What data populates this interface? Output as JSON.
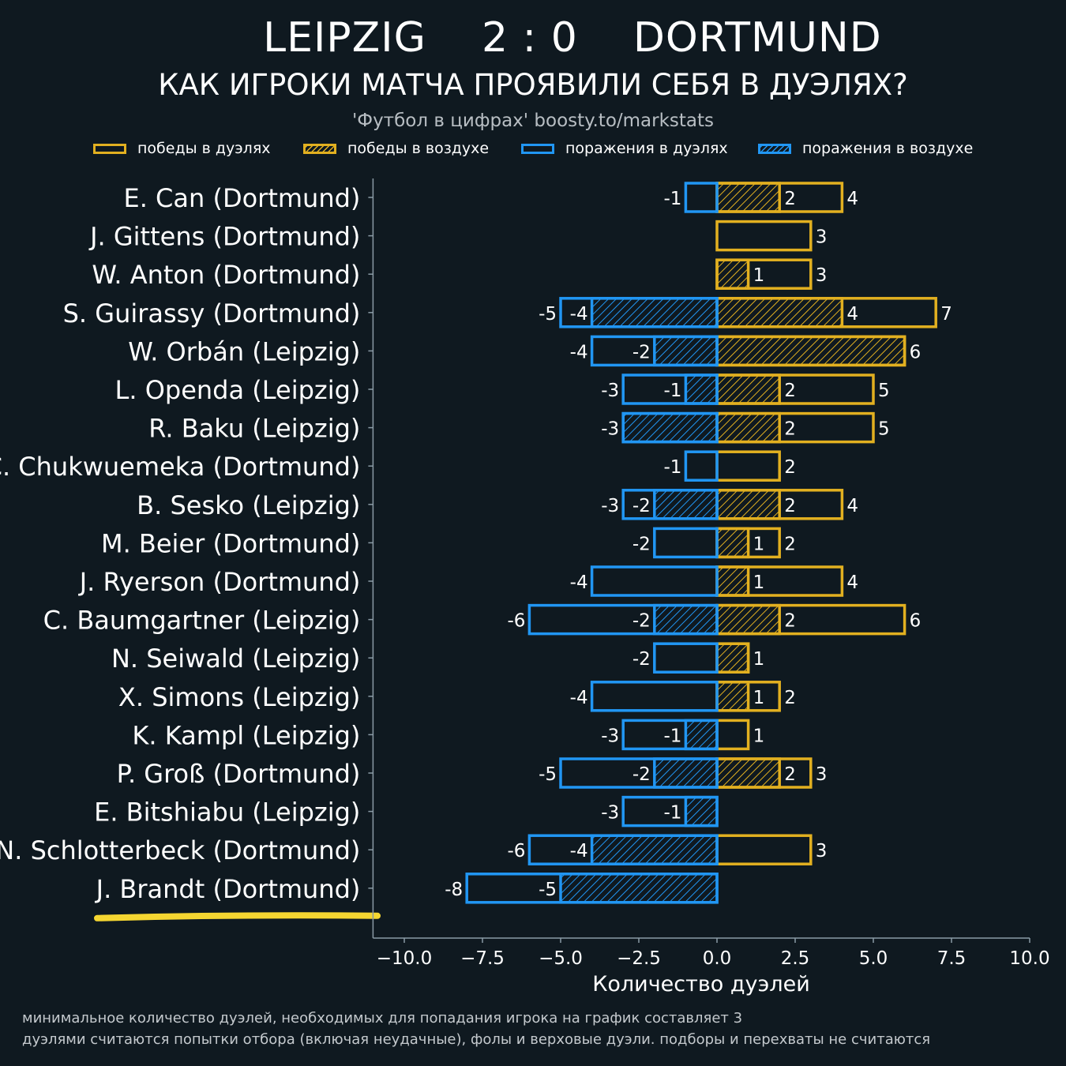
{
  "header": {
    "title": "LEIPZIG    2 : 0    DORTMUND",
    "subtitle": "КАК ИГРОКИ МАТЧА ПРОЯВИЛИ СЕБЯ В ДУЭЛЯХ?",
    "credit": "'Футбол в цифрах' boosty.to/markstats"
  },
  "legend": {
    "duel_wins": "победы в дуэлях",
    "aerial_wins": "победы в воздухе",
    "duel_losses": "поражения в дуэлях",
    "aerial_losses": "поражения в воздухе"
  },
  "footnotes": {
    "line1": "минимальное количество дуэлей, необходимых для попадания игрока на график составляет 3",
    "line2": "дуэлями считаются попытки отбора (включая неудачные), фолы и верховые дуэли. подборы и перехваты не считаются"
  },
  "colors": {
    "background": "#0f1920",
    "wins": "#e2b020",
    "losses": "#2196f3",
    "axis": "#8a9aa5",
    "highlight": "#f5d631"
  },
  "chart_data": {
    "type": "bar",
    "orientation": "horizontal",
    "xlabel": "Количество дуэлей",
    "xlim": [
      -11,
      10
    ],
    "xticks": [
      -10.0,
      -7.5,
      -5.0,
      -2.5,
      0.0,
      2.5,
      5.0,
      7.5,
      10.0
    ],
    "xtick_labels": [
      "−10.0",
      "−7.5",
      "−5.0",
      "−2.5",
      "0.0",
      "2.5",
      "5.0",
      "7.5",
      "10.0"
    ],
    "legend_position": "top",
    "grid": false,
    "players": [
      {
        "name": "E. Can (Dortmund)",
        "duel_wins": 4,
        "aerial_wins": 2,
        "duel_losses": -1,
        "aerial_losses": 0
      },
      {
        "name": "J. Gittens (Dortmund)",
        "duel_wins": 3,
        "aerial_wins": 0,
        "duel_losses": 0,
        "aerial_losses": 0
      },
      {
        "name": "W. Anton (Dortmund)",
        "duel_wins": 3,
        "aerial_wins": 1,
        "duel_losses": 0,
        "aerial_losses": 0
      },
      {
        "name": "S. Guirassy (Dortmund)",
        "duel_wins": 7,
        "aerial_wins": 4,
        "duel_losses": -5,
        "aerial_losses": -4
      },
      {
        "name": "W. Orbán (Leipzig)",
        "duel_wins": 6,
        "aerial_wins": 6,
        "duel_losses": -4,
        "aerial_losses": -2
      },
      {
        "name": "L. Openda (Leipzig)",
        "duel_wins": 5,
        "aerial_wins": 2,
        "duel_losses": -3,
        "aerial_losses": -1
      },
      {
        "name": "R. Baku (Leipzig)",
        "duel_wins": 5,
        "aerial_wins": 2,
        "duel_losses": -3,
        "aerial_losses": -3
      },
      {
        "name": "C. Chukwuemeka (Dortmund)",
        "duel_wins": 2,
        "aerial_wins": 0,
        "duel_losses": -1,
        "aerial_losses": 0
      },
      {
        "name": "B. Sesko (Leipzig)",
        "duel_wins": 4,
        "aerial_wins": 2,
        "duel_losses": -3,
        "aerial_losses": -2
      },
      {
        "name": "M. Beier (Dortmund)",
        "duel_wins": 2,
        "aerial_wins": 1,
        "duel_losses": -2,
        "aerial_losses": 0
      },
      {
        "name": "J. Ryerson (Dortmund)",
        "duel_wins": 4,
        "aerial_wins": 1,
        "duel_losses": -4,
        "aerial_losses": 0
      },
      {
        "name": "C. Baumgartner (Leipzig)",
        "duel_wins": 6,
        "aerial_wins": 2,
        "duel_losses": -6,
        "aerial_losses": -2
      },
      {
        "name": "N. Seiwald (Leipzig)",
        "duel_wins": 1,
        "aerial_wins": 1,
        "duel_losses": -2,
        "aerial_losses": 0
      },
      {
        "name": "X. Simons (Leipzig)",
        "duel_wins": 2,
        "aerial_wins": 1,
        "duel_losses": -4,
        "aerial_losses": 0
      },
      {
        "name": "K. Kampl (Leipzig)",
        "duel_wins": 1,
        "aerial_wins": 0,
        "duel_losses": -3,
        "aerial_losses": -1
      },
      {
        "name": "P. Groß (Dortmund)",
        "duel_wins": 3,
        "aerial_wins": 2,
        "duel_losses": -5,
        "aerial_losses": -2
      },
      {
        "name": "E. Bitshiabu (Leipzig)",
        "duel_wins": 0,
        "aerial_wins": 0,
        "duel_losses": -3,
        "aerial_losses": -1
      },
      {
        "name": "N. Schlotterbeck (Dortmund)",
        "duel_wins": 3,
        "aerial_wins": 0,
        "duel_losses": -6,
        "aerial_losses": -4
      },
      {
        "name": "J. Brandt (Dortmund)",
        "duel_wins": 0,
        "aerial_wins": 0,
        "duel_losses": -8,
        "aerial_losses": -5
      }
    ],
    "highlighted_player": "J. Brandt (Dortmund)"
  }
}
